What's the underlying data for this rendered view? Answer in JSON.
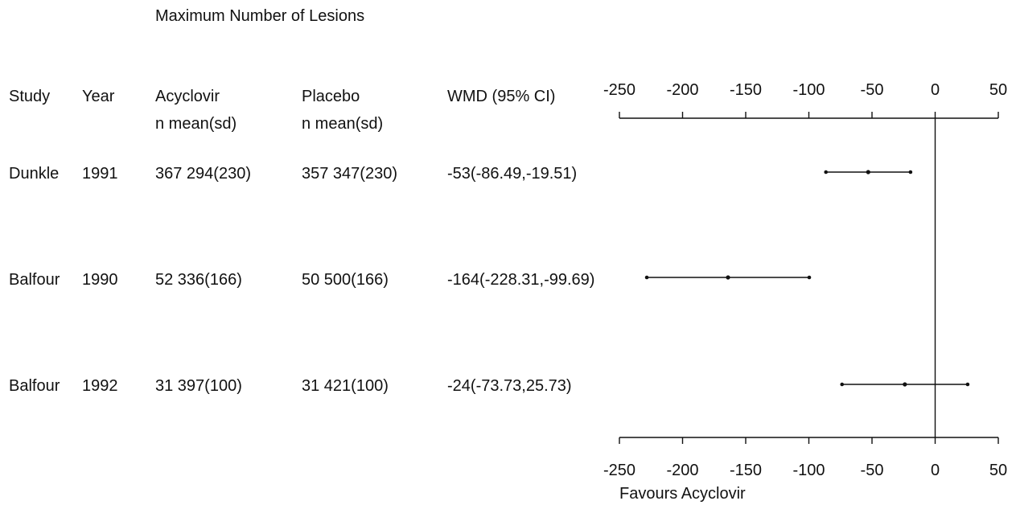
{
  "chart_data": {
    "type": "forest",
    "title": "Maximum Number of Lesions",
    "columns": {
      "study": "Study",
      "year": "Year",
      "treatment": "Acyclovir",
      "treatment_sub": "n mean(sd)",
      "control": "Placebo",
      "control_sub": "n mean(sd)",
      "effect": "WMD (95% CI)"
    },
    "rows": [
      {
        "study": "Dunkle",
        "year": "1991",
        "treatment": "367 294(230)",
        "control": "357 347(230)",
        "effect_text": "-53(-86.49,-19.51)",
        "estimate": -53,
        "ci_low": -86.49,
        "ci_high": -19.51
      },
      {
        "study": "Balfour",
        "year": "1990",
        "treatment": "52 336(166)",
        "control": "50 500(166)",
        "effect_text": "-164(-228.31,-99.69)",
        "estimate": -164,
        "ci_low": -228.31,
        "ci_high": -99.69
      },
      {
        "study": "Balfour",
        "year": "1992",
        "treatment": "31 397(100)",
        "control": "31 421(100)",
        "effect_text": "-24(-73.73,25.73)",
        "estimate": -24,
        "ci_low": -73.73,
        "ci_high": 25.73
      }
    ],
    "x_ticks": [
      -250,
      -200,
      -150,
      -100,
      -50,
      0,
      50
    ],
    "x_tick_labels": [
      "-250",
      "-200",
      "-150",
      "-100",
      "-50",
      "0",
      "50"
    ],
    "xlim": [
      -250,
      50
    ],
    "xlabel": "Favours Acyclovir",
    "reference_line": 0,
    "grid": false
  }
}
